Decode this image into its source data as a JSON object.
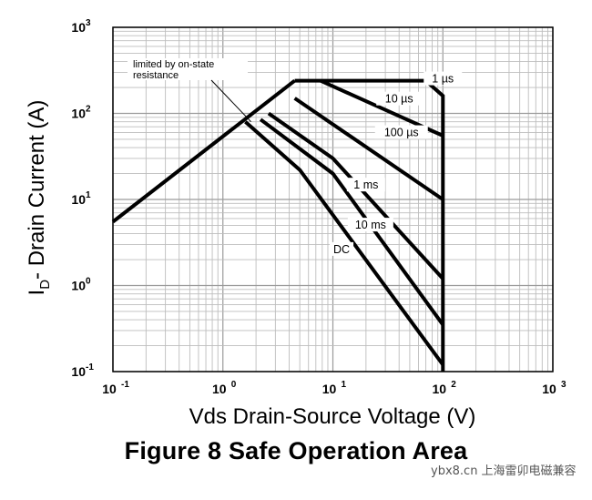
{
  "chart_data": {
    "type": "line",
    "title": "Figure 8 Safe Operation Area",
    "xlabel": "Vds Drain-Source Voltage (V)",
    "ylabel": {
      "prefix": "I",
      "sub": "D",
      "suffix": "- Drain Current (A)"
    },
    "x_scale": "log",
    "y_scale": "log",
    "xlim": [
      0.1,
      1000
    ],
    "ylim": [
      0.1,
      1000
    ],
    "grid": true,
    "x_ticks": [
      {
        "value": 0.1,
        "base": "10",
        "exp": "-1"
      },
      {
        "value": 1,
        "base": "10",
        "exp": "0"
      },
      {
        "value": 10,
        "base": "10",
        "exp": "1"
      },
      {
        "value": 100,
        "base": "10",
        "exp": "2"
      },
      {
        "value": 1000,
        "base": "10",
        "exp": "3"
      }
    ],
    "y_ticks": [
      {
        "value": 0.1,
        "base": "10",
        "exp": "-1"
      },
      {
        "value": 1,
        "base": "10",
        "exp": "0"
      },
      {
        "value": 10,
        "base": "10",
        "exp": "1"
      },
      {
        "value": 100,
        "base": "10",
        "exp": "2"
      },
      {
        "value": 1000,
        "base": "10",
        "exp": "3"
      }
    ],
    "series": [
      {
        "name": "limited by on-state resistance",
        "points": [
          [
            0.1,
            5.5
          ],
          [
            4.5,
            240
          ]
        ]
      },
      {
        "name": "1 µs",
        "points": [
          [
            4.5,
            240
          ],
          [
            70,
            240
          ],
          [
            100,
            160
          ],
          [
            100,
            0.1
          ]
        ]
      },
      {
        "name": "10 µs",
        "points": [
          [
            7.7,
            240
          ],
          [
            100,
            55
          ]
        ]
      },
      {
        "name": "100 µs",
        "points": [
          [
            4.5,
            150
          ],
          [
            100,
            10
          ]
        ]
      },
      {
        "name": "1 ms",
        "points": [
          [
            2.6,
            100
          ],
          [
            10,
            30
          ],
          [
            100,
            1.2
          ]
        ]
      },
      {
        "name": "10 ms",
        "points": [
          [
            2.2,
            85
          ],
          [
            10,
            20
          ],
          [
            100,
            0.35
          ]
        ]
      },
      {
        "name": "DC",
        "points": [
          [
            1.6,
            80
          ],
          [
            5,
            22
          ],
          [
            100,
            0.12
          ]
        ]
      }
    ],
    "annotations": [
      {
        "lines": [
          "limited by on-state",
          "resistance"
        ],
        "target": [
          1.8,
          80
        ]
      },
      {
        "text": "1 µs",
        "at": [
          100,
          240
        ]
      },
      {
        "text": "10 µs",
        "at": [
          40,
          140
        ]
      },
      {
        "text": "100 µs",
        "at": [
          42,
          57
        ]
      },
      {
        "text": "1 ms",
        "at": [
          20,
          14
        ]
      },
      {
        "text": "10 ms",
        "at": [
          22,
          4.8
        ]
      },
      {
        "text": "DC",
        "at": [
          12,
          2.5
        ]
      }
    ]
  },
  "watermark": "ybx8.cn 上海雷卯电磁兼容"
}
